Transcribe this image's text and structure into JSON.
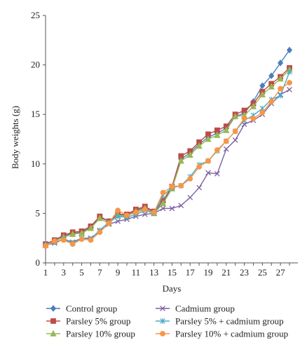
{
  "chart_data": {
    "type": "line",
    "xlabel": "Days",
    "ylabel": "Body weights (g)",
    "ylim": [
      0,
      25
    ],
    "xlim": [
      1,
      28
    ],
    "y_ticks": [
      "0",
      "5",
      "10",
      "15",
      "20",
      "25"
    ],
    "x_ticks": [
      "1",
      "3",
      "5",
      "7",
      "9",
      "11",
      "13",
      "15",
      "17",
      "19",
      "21",
      "23",
      "25",
      "27"
    ],
    "grid": false,
    "legend_position": "bottom",
    "x": [
      1,
      2,
      3,
      4,
      5,
      6,
      7,
      8,
      9,
      10,
      11,
      12,
      13,
      14,
      15,
      16,
      17,
      18,
      19,
      20,
      21,
      22,
      23,
      24,
      25,
      26,
      27,
      28
    ],
    "series": [
      {
        "name": "Control group",
        "color": "#4a7ebb",
        "marker": "diamond",
        "values": [
          1.9,
          2.3,
          2.7,
          3.0,
          3.1,
          3.6,
          4.6,
          4.2,
          4.9,
          4.8,
          5.3,
          5.6,
          5.1,
          6.1,
          7.6,
          10.5,
          11.1,
          12.0,
          12.7,
          13.1,
          13.6,
          14.8,
          15.1,
          16.3,
          17.9,
          18.9,
          20.2,
          21.5
        ]
      },
      {
        "name": "Parsley 5% group",
        "color": "#be4b48",
        "marker": "square",
        "values": [
          1.9,
          2.3,
          2.8,
          3.1,
          3.2,
          3.7,
          4.7,
          4.2,
          4.9,
          4.9,
          5.4,
          5.7,
          5.2,
          6.3,
          7.7,
          10.8,
          11.3,
          12.2,
          13.0,
          13.4,
          13.8,
          15.0,
          15.4,
          16.1,
          17.3,
          18.1,
          18.8,
          19.7
        ]
      },
      {
        "name": "Parsley 10% group",
        "color": "#98b954",
        "marker": "triangle",
        "values": [
          1.8,
          2.2,
          2.6,
          2.9,
          3.0,
          3.5,
          4.5,
          4.0,
          4.8,
          4.7,
          5.2,
          5.5,
          5.0,
          6.0,
          7.5,
          10.3,
          10.9,
          11.8,
          12.5,
          12.9,
          13.4,
          14.8,
          14.9,
          15.8,
          17.0,
          17.8,
          18.6,
          19.5
        ]
      },
      {
        "name": "Cadmium group",
        "color": "#7d60a0",
        "marker": "x",
        "values": [
          1.8,
          2.0,
          2.4,
          2.1,
          2.5,
          2.5,
          3.2,
          3.9,
          4.2,
          4.4,
          4.7,
          4.9,
          5.0,
          5.5,
          5.5,
          5.8,
          6.6,
          7.6,
          9.1,
          9.0,
          11.5,
          12.4,
          14.0,
          14.4,
          15.0,
          16.1,
          17.0,
          17.5
        ]
      },
      {
        "name": "Parsley 5% + cadmium group",
        "color": "#4bacc6",
        "marker": "asterisk",
        "values": [
          1.8,
          2.1,
          2.4,
          2.0,
          2.5,
          2.4,
          3.3,
          4.1,
          4.7,
          4.6,
          4.9,
          5.3,
          5.0,
          6.8,
          7.6,
          7.8,
          8.7,
          9.9,
          10.3,
          11.3,
          12.3,
          13.3,
          14.4,
          14.9,
          15.6,
          16.5,
          16.9,
          19.3
        ]
      },
      {
        "name": "Parsley 10% + cadmium group",
        "color": "#f79646",
        "marker": "circle",
        "values": [
          1.7,
          2.2,
          2.3,
          1.9,
          2.4,
          2.3,
          3.1,
          4.0,
          5.3,
          4.8,
          5.1,
          5.4,
          5.1,
          7.1,
          7.7,
          7.8,
          8.5,
          9.7,
          10.3,
          11.4,
          12.3,
          13.3,
          14.6,
          14.6,
          15.2,
          16.3,
          17.6,
          18.2
        ]
      }
    ]
  }
}
